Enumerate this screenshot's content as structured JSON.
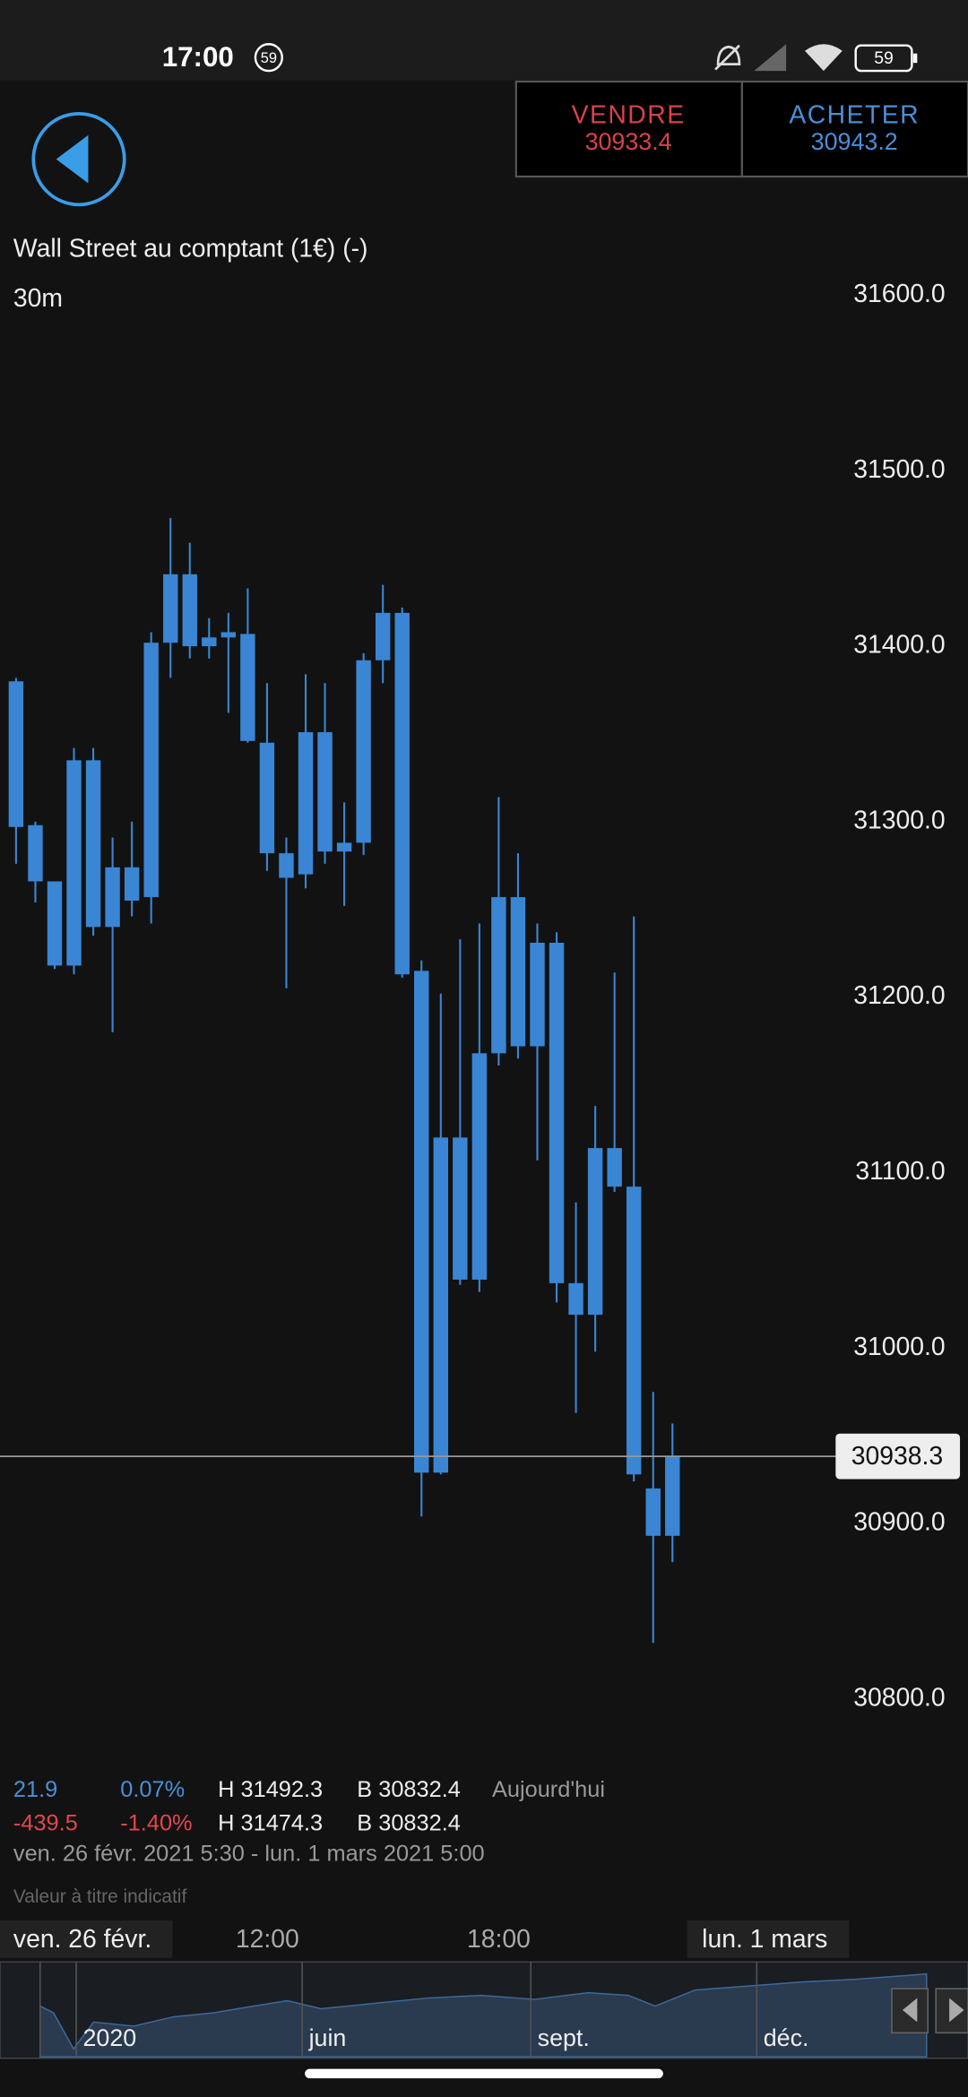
{
  "status_bar": {
    "time": "17:00",
    "notification_count": "59",
    "battery": "59"
  },
  "header": {
    "sell": {
      "label": "VENDRE",
      "price": "30933.4"
    },
    "buy": {
      "label": "ACHETER",
      "price": "30943.2"
    }
  },
  "chart_data": {
    "type": "candlestick",
    "title": "Wall Street au comptant (1€) (-)",
    "interval": "30m",
    "color": "#3a86d4",
    "ylim": [
      30750,
      31625
    ],
    "yticks": [
      {
        "value": 31600,
        "label": "31600.0"
      },
      {
        "value": 31500,
        "label": "31500.0"
      },
      {
        "value": 31400,
        "label": "31400.0"
      },
      {
        "value": 31300,
        "label": "31300.0"
      },
      {
        "value": 31200,
        "label": "31200.0"
      },
      {
        "value": 31100,
        "label": "31100.0"
      },
      {
        "value": 31000,
        "label": "31000.0"
      },
      {
        "value": 30900,
        "label": "30900.0"
      },
      {
        "value": 30800,
        "label": "30800.0"
      }
    ],
    "last_price": 30938.3,
    "open": [
      31380,
      31298,
      31266,
      31218,
      31335,
      31240,
      31274,
      31257,
      31402,
      31441,
      31400,
      31405,
      31407,
      31345,
      31282,
      31270,
      31351,
      31283,
      31288,
      31392,
      31419,
      31215,
      30929,
      31120,
      31039,
      31168,
      31257,
      31172,
      31231,
      31037,
      31019,
      31114,
      31092,
      30920,
      30893
    ],
    "high": [
      31382,
      31300,
      31266,
      31342,
      31342,
      31291,
      31300,
      31408,
      31473,
      31459,
      31416,
      31419,
      31433,
      31379,
      31291,
      31384,
      31379,
      31311,
      31396,
      31435,
      31422,
      31221,
      31202,
      31233,
      31242,
      31314,
      31282,
      31242,
      31237,
      31083,
      31138,
      31214,
      31246,
      30975,
      30957
    ],
    "low": [
      31276,
      31254,
      31216,
      31213,
      31235,
      31180,
      31246,
      31242,
      31382,
      31393,
      31393,
      31362,
      31345,
      31272,
      31205,
      31262,
      31276,
      31252,
      31281,
      31379,
      31211,
      30904,
      30928,
      31036,
      31032,
      31161,
      31165,
      31107,
      31026,
      30963,
      30998,
      31089,
      30924,
      30832,
      30878
    ],
    "close": [
      31297,
      31266,
      31218,
      31335,
      31240,
      31274,
      31255,
      31402,
      31441,
      31400,
      31405,
      31408,
      31346,
      31282,
      31268,
      31351,
      31283,
      31288,
      31392,
      31419,
      31213,
      30929,
      31120,
      31039,
      31168,
      31257,
      31172,
      31231,
      31037,
      31019,
      31114,
      31092,
      30928,
      30893,
      30938.3
    ],
    "x_labels": [
      "ven. 26 févr.",
      "12:00",
      "18:00",
      "lun. 1 mars"
    ]
  },
  "stats": {
    "rows": [
      [
        "21.9",
        "0.07%",
        "H 31492.3",
        "B 30832.4",
        "Aujourd'hui"
      ],
      [
        "-439.5",
        "-1.40%",
        "H 31474.3",
        "B 30832.4"
      ]
    ],
    "range": "ven. 26 févr. 2021 5:30 - lun. 1 mars 2021 5:00",
    "disclaimer": "Valeur à titre indicatif"
  },
  "navigator": {
    "labels": [
      "2020",
      "juin",
      "sept.",
      "déc."
    ]
  }
}
